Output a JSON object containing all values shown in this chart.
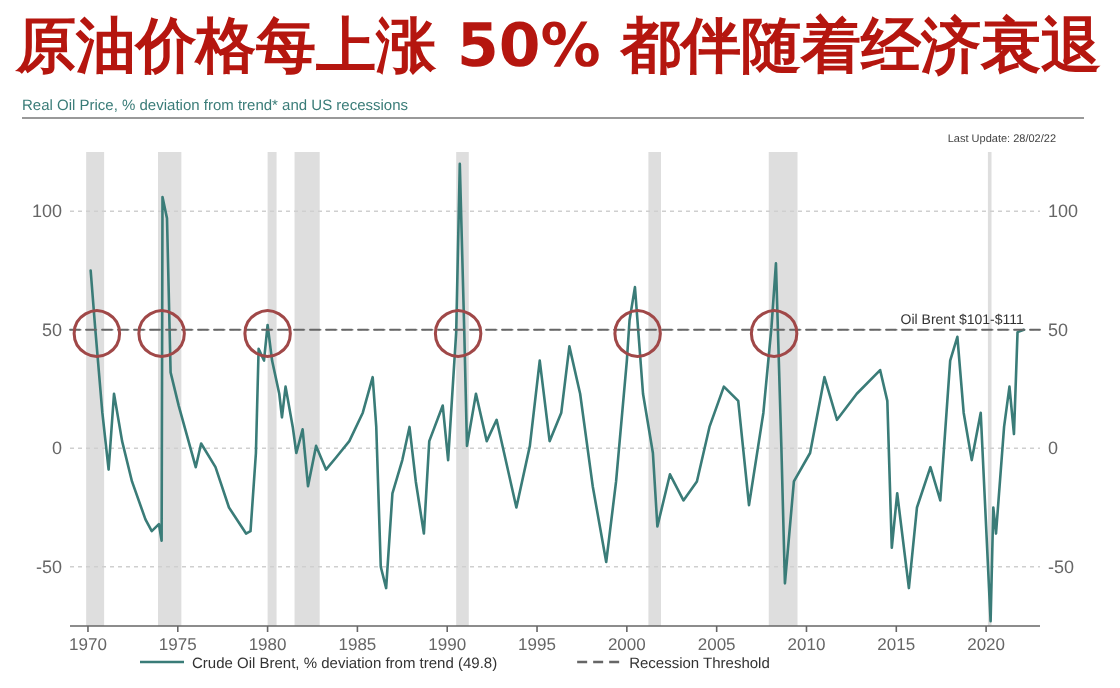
{
  "chart_data": {
    "type": "line",
    "title": "原油价格每上涨 50% 都伴随着经济衰退",
    "subtitle": "Real Oil Price, % deviation from trend* and US recessions",
    "xlim": [
      1969,
      2023
    ],
    "xticks": [
      1970,
      1975,
      1980,
      1985,
      1990,
      1995,
      2000,
      2005,
      2010,
      2015,
      2020
    ],
    "ylim": [
      -75,
      125
    ],
    "yticks": [
      -50,
      0,
      50,
      100
    ],
    "y2lim": [
      -75,
      125
    ],
    "y2ticks": [
      -50,
      0,
      50,
      100
    ],
    "grid": "y",
    "legend": "bottom",
    "series": [
      {
        "name": "Crude Oil Brent, % deviation from trend (49.8)",
        "color": "#3a7c78",
        "line_style": "solid",
        "x": [
          1970.15,
          1970.4,
          1970.8,
          1971.15,
          1971.45,
          1971.9,
          1972.45,
          1973.2,
          1973.55,
          1973.95,
          1974.1,
          1974.15,
          1974.4,
          1974.6,
          1975.05,
          1976,
          1976.3,
          1977.1,
          1977.85,
          1978.8,
          1979.05,
          1979.35,
          1979.5,
          1979.8,
          1980,
          1980.25,
          1980.65,
          1980.8,
          1981,
          1981.4,
          1981.6,
          1981.95,
          1982.25,
          1982.7,
          1983.25,
          1983.8,
          1984.55,
          1985.3,
          1985.85,
          1986.05,
          1986.3,
          1986.6,
          1986.95,
          1987.5,
          1987.9,
          1988.25,
          1988.7,
          1989,
          1989.75,
          1990.05,
          1990.5,
          1990.7,
          1990.95,
          1991.1,
          1991.6,
          1992.2,
          1992.75,
          1993.85,
          1994.6,
          1995.15,
          1995.7,
          1996.35,
          1996.8,
          1997.4,
          1998.1,
          1998.85,
          1999.4,
          2000,
          2000.15,
          2000.45,
          2000.9,
          2001.45,
          2001.7,
          2002.4,
          2003.15,
          2003.9,
          2004.6,
          2005.4,
          2006.2,
          2006.8,
          2007.6,
          2008.05,
          2008.3,
          2008.6,
          2008.8,
          2009.3,
          2010.2,
          2011,
          2011.7,
          2012.8,
          2014.1,
          2014.5,
          2014.75,
          2015.05,
          2015.7,
          2016.15,
          2016.9,
          2017.45,
          2018,
          2018.4,
          2018.75,
          2019.2,
          2019.7,
          2020.25,
          2020.4,
          2020.55,
          2021,
          2021.3,
          2021.55,
          2021.75,
          2022.1
        ],
        "values": [
          75,
          51,
          15,
          -9,
          23,
          3,
          -14,
          -30,
          -35,
          -32,
          -39,
          106,
          97,
          32,
          18,
          -8,
          2,
          -8,
          -25,
          -36,
          -35,
          -2,
          42,
          37,
          52,
          37,
          23,
          13,
          26,
          9,
          -2,
          8,
          -16,
          1,
          -9,
          -4,
          3,
          15,
          30,
          9,
          -50,
          -59,
          -19,
          -5,
          9,
          -14,
          -36,
          3,
          18,
          -5,
          49,
          120,
          49,
          1,
          23,
          3,
          12,
          -25,
          1,
          37,
          3,
          15,
          43,
          23,
          -16,
          -48,
          -14,
          37,
          54,
          68,
          23,
          -2,
          -33,
          -11,
          -22,
          -14,
          9,
          26,
          20,
          -24,
          15,
          51,
          78,
          1,
          -57,
          -14,
          -2,
          30,
          12,
          23,
          33,
          20,
          -42,
          -19,
          -59,
          -25,
          -8,
          -22,
          37,
          47,
          15,
          -5,
          15,
          -73,
          -25,
          -36,
          9,
          26,
          6,
          49,
          50
        ]
      },
      {
        "name": "Recession Threshold",
        "color": "#666666",
        "line_style": "dashed",
        "x": [
          1969,
          2023
        ],
        "values": [
          50,
          50
        ]
      }
    ],
    "bands": [
      {
        "axis": "x",
        "from": 1969.9,
        "to": 1970.9,
        "color": "#dedede"
      },
      {
        "axis": "x",
        "from": 1973.9,
        "to": 1975.2,
        "color": "#dedede"
      },
      {
        "axis": "x",
        "from": 1980,
        "to": 1980.5,
        "color": "#dedede"
      },
      {
        "axis": "x",
        "from": 1981.5,
        "to": 1982.9,
        "color": "#dedede"
      },
      {
        "axis": "x",
        "from": 1990.5,
        "to": 1991.2,
        "color": "#dedede"
      },
      {
        "axis": "x",
        "from": 2001.2,
        "to": 2001.9,
        "color": "#dedede"
      },
      {
        "axis": "x",
        "from": 2007.9,
        "to": 2009.5,
        "color": "#dedede"
      },
      {
        "axis": "x",
        "from": 2020.1,
        "to": 2020.3,
        "color": "#dedede"
      }
    ],
    "annotations": [
      "Last Update: 28/02/22",
      {
        "text": "Oil Brent $101-$111",
        "x": 2022.1,
        "y": 50
      },
      {
        "text": "◯",
        "x": 1970.5,
        "y": 50
      },
      {
        "text": "◯",
        "x": 1974.1,
        "y": 50
      },
      {
        "text": "◯",
        "x": 1980,
        "y": 50
      },
      {
        "text": "◯",
        "x": 1990.6,
        "y": 50
      },
      {
        "text": "◯",
        "x": 2000.6,
        "y": 50
      },
      {
        "text": "◯",
        "x": 2008.2,
        "y": 50
      }
    ]
  }
}
